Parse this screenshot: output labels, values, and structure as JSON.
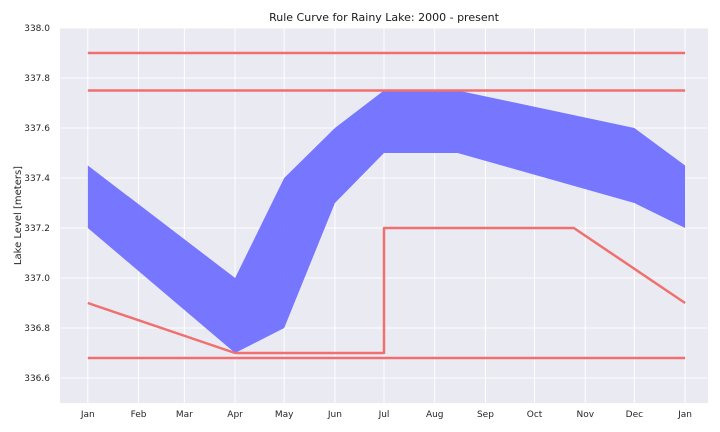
{
  "chart_data": {
    "type": "area",
    "title": "Rule Curve for Rainy Lake: 2000 - present",
    "xlabel": "",
    "ylabel": "Lake Level [meters]",
    "grid": true,
    "ylim": [
      336.5,
      338.0
    ],
    "xlim": [
      "2000-12-15",
      "2002-01-15"
    ],
    "x_ticks": [
      "2001-01-01",
      "2001-02-01",
      "2001-03-01",
      "2001-04-01",
      "2001-05-01",
      "2001-06-01",
      "2001-07-01",
      "2001-08-01",
      "2001-09-01",
      "2001-10-01",
      "2001-11-01",
      "2001-12-01",
      "2002-01-01"
    ],
    "x_tick_labels": [
      "Jan",
      "Feb",
      "Mar",
      "Apr",
      "May",
      "Jun",
      "Jul",
      "Aug",
      "Sep",
      "Oct",
      "Nov",
      "Dec",
      "Jan"
    ],
    "y_ticks": [
      336.6,
      336.8,
      337.0,
      337.2,
      337.4,
      337.6,
      337.8,
      338.0
    ],
    "y_tick_labels": [
      "336.6",
      "336.8",
      "337.0",
      "337.2",
      "337.4",
      "337.6",
      "337.8",
      "338.0"
    ],
    "band": {
      "color": "#7070ff",
      "x": [
        "2001-01-01",
        "2001-04-01",
        "2001-05-01",
        "2001-06-01",
        "2001-07-01",
        "2001-08-15",
        "2001-12-01",
        "2002-01-01"
      ],
      "upper": [
        337.45,
        337.0,
        337.4,
        337.6,
        337.75,
        337.75,
        337.6,
        337.45
      ],
      "lower": [
        337.2,
        336.7,
        336.8,
        337.3,
        337.5,
        337.5,
        337.3,
        337.2
      ]
    },
    "lines": [
      {
        "color": "#f07070",
        "x": [
          "2001-01-01",
          "2002-01-01"
        ],
        "values": [
          337.9,
          337.9
        ]
      },
      {
        "color": "#f07070",
        "x": [
          "2001-01-01",
          "2002-01-01"
        ],
        "values": [
          337.75,
          337.75
        ]
      },
      {
        "color": "#f07070",
        "x": [
          "2001-01-01",
          "2001-04-01",
          "2001-07-01",
          "2001-07-01",
          "2001-10-25",
          "2002-01-01"
        ],
        "values": [
          336.9,
          336.7,
          336.7,
          337.2,
          337.2,
          336.9
        ]
      },
      {
        "color": "#f07070",
        "x": [
          "2001-01-01",
          "2002-01-01"
        ],
        "values": [
          336.68,
          336.68
        ]
      }
    ]
  }
}
